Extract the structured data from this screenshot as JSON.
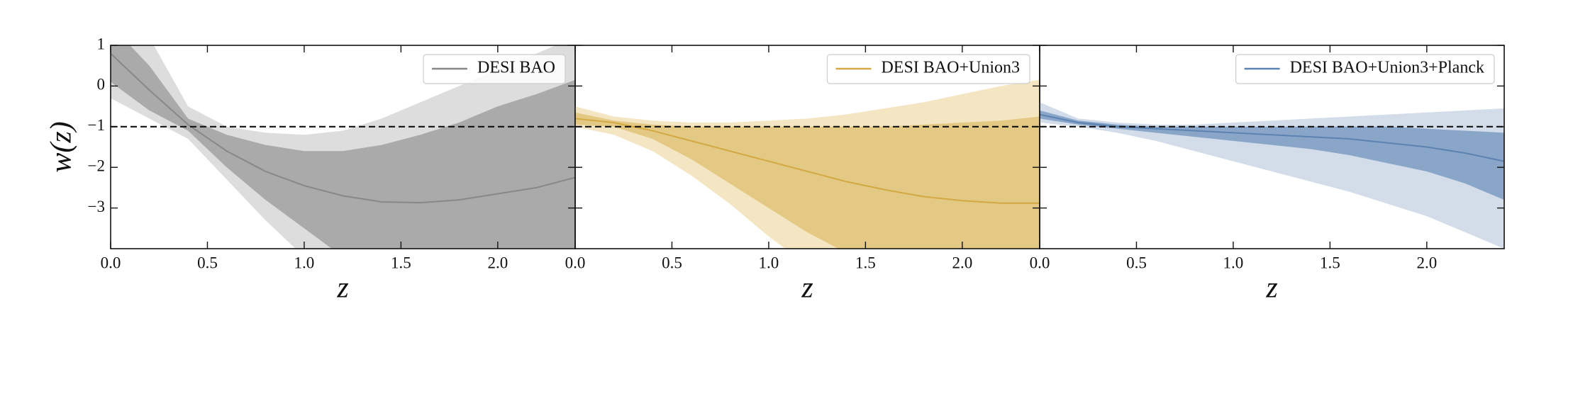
{
  "chart_data": [
    {
      "type": "line",
      "xlabel": "z",
      "ylabel": "w(z)",
      "x": [
        0,
        0.2,
        0.4,
        0.6,
        0.8,
        1.0,
        1.2,
        1.4,
        1.6,
        1.8,
        2.0,
        2.2,
        2.4
      ],
      "xlim": [
        0,
        2.4
      ],
      "ylim": [
        -4,
        1
      ],
      "xticks": [
        {
          "value": 0,
          "label": "0.0"
        },
        0.5,
        {
          "value": 1,
          "label": "1.0"
        },
        1.5,
        {
          "value": 2,
          "label": "2.0"
        }
      ],
      "yticks": [
        1,
        0,
        {
          "value": -1,
          "label": "−1"
        },
        {
          "value": -2,
          "label": "−2"
        },
        {
          "value": -3,
          "label": "−3"
        }
      ],
      "hline": -1,
      "series": [
        {
          "name": "DESI BAO",
          "color": "#888888",
          "values": [
            0.8,
            -0.1,
            -0.95,
            -1.6,
            -2.1,
            -2.45,
            -2.7,
            -2.85,
            -2.87,
            -2.8,
            -2.65,
            -2.5,
            -2.25
          ]
        }
      ],
      "bands": [
        {
          "color": "#dddddd",
          "upper": [
            2,
            1.2,
            -0.5,
            -1.0,
            -1.15,
            -1.2,
            -1.1,
            -0.8,
            -0.4,
            0,
            0.4,
            0.8,
            1.2
          ],
          "lower": [
            -0.3,
            -0.8,
            -1.3,
            -2.3,
            -3.3,
            -4.2,
            -5,
            -5,
            -5,
            -5,
            -5,
            -5,
            -5
          ]
        },
        {
          "color": "#aaaaaa",
          "upper": [
            1.5,
            0.5,
            -0.8,
            -1.2,
            -1.45,
            -1.6,
            -1.6,
            -1.45,
            -1.2,
            -0.9,
            -0.5,
            -0.2,
            0.15
          ],
          "lower": [
            0.1,
            -0.6,
            -1.1,
            -2.0,
            -2.8,
            -3.5,
            -4.2,
            -4.5,
            -4.5,
            -4.5,
            -4.5,
            -4.5,
            -4.5
          ]
        }
      ],
      "legend": "upper right"
    },
    {
      "type": "line",
      "xlabel": "z",
      "x": [
        0,
        0.2,
        0.4,
        0.6,
        0.8,
        1.0,
        1.2,
        1.4,
        1.6,
        1.8,
        2.0,
        2.2,
        2.4
      ],
      "xlim": [
        0,
        2.4
      ],
      "ylim": [
        -4,
        1
      ],
      "xticks": [
        {
          "value": 0,
          "label": "0.0"
        },
        0.5,
        {
          "value": 1,
          "label": "1.0"
        },
        1.5,
        {
          "value": 2,
          "label": "2.0"
        }
      ],
      "yticks": [
        1,
        0,
        -1,
        -2,
        -3
      ],
      "hline": -1,
      "series": [
        {
          "name": "DESI BAO+Union3",
          "color": "#d4a843",
          "values": [
            -0.8,
            -0.9,
            -1.1,
            -1.35,
            -1.6,
            -1.85,
            -2.1,
            -2.35,
            -2.55,
            -2.72,
            -2.82,
            -2.88,
            -2.88
          ]
        }
      ],
      "bands": [
        {
          "color": "#f4e5c3",
          "upper": [
            -0.5,
            -0.75,
            -0.85,
            -0.9,
            -0.9,
            -0.85,
            -0.8,
            -0.7,
            -0.55,
            -0.4,
            -0.2,
            0,
            0.15
          ],
          "lower": [
            -1.0,
            -1.2,
            -1.6,
            -2.2,
            -2.9,
            -3.7,
            -4.4,
            -5,
            -5,
            -5,
            -5,
            -5,
            -5
          ]
        },
        {
          "color": "#e3c983",
          "upper": [
            -0.65,
            -0.85,
            -0.95,
            -1.0,
            -1.0,
            -1.0,
            -1.0,
            -1.0,
            -1.0,
            -0.95,
            -0.9,
            -0.85,
            -0.75
          ],
          "lower": [
            -0.95,
            -1.0,
            -1.3,
            -1.8,
            -2.4,
            -3.0,
            -3.6,
            -4.1,
            -4.5,
            -4.5,
            -4.5,
            -4.5,
            -4.5
          ]
        }
      ],
      "legend": "upper right"
    },
    {
      "type": "line",
      "xlabel": "z",
      "x": [
        0,
        0.2,
        0.4,
        0.6,
        0.8,
        1.0,
        1.2,
        1.4,
        1.6,
        1.8,
        2.0,
        2.2,
        2.4
      ],
      "xlim": [
        0,
        2.4
      ],
      "ylim": [
        -4,
        1
      ],
      "xticks": [
        {
          "value": 0,
          "label": "0.0"
        },
        0.5,
        {
          "value": 1,
          "label": "1.0"
        },
        1.5,
        {
          "value": 2,
          "label": "2.0"
        }
      ],
      "yticks": [
        1,
        0,
        -1,
        -2,
        -3
      ],
      "hline": -1,
      "series": [
        {
          "name": "DESI BAO+Union3+Planck",
          "color": "#5b82b0",
          "values": [
            -0.7,
            -0.9,
            -1.0,
            -1.05,
            -1.1,
            -1.15,
            -1.2,
            -1.25,
            -1.3,
            -1.4,
            -1.5,
            -1.65,
            -1.85
          ]
        }
      ],
      "bands": [
        {
          "color": "#d3dde9",
          "upper": [
            -0.4,
            -0.8,
            -0.9,
            -0.95,
            -0.95,
            -0.9,
            -0.85,
            -0.8,
            -0.75,
            -0.7,
            -0.65,
            -0.6,
            -0.55
          ],
          "lower": [
            -0.9,
            -1.0,
            -1.15,
            -1.35,
            -1.6,
            -1.85,
            -2.1,
            -2.35,
            -2.6,
            -2.9,
            -3.2,
            -3.6,
            -4.0
          ]
        },
        {
          "color": "#89a6c9",
          "upper": [
            -0.6,
            -0.85,
            -0.95,
            -1.0,
            -1.0,
            -1.0,
            -1.0,
            -1.0,
            -1.0,
            -1.0,
            -1.05,
            -1.1,
            -1.15
          ],
          "lower": [
            -0.8,
            -0.95,
            -1.05,
            -1.15,
            -1.25,
            -1.35,
            -1.45,
            -1.55,
            -1.7,
            -1.9,
            -2.1,
            -2.4,
            -2.8
          ]
        }
      ],
      "legend": "upper right"
    }
  ]
}
